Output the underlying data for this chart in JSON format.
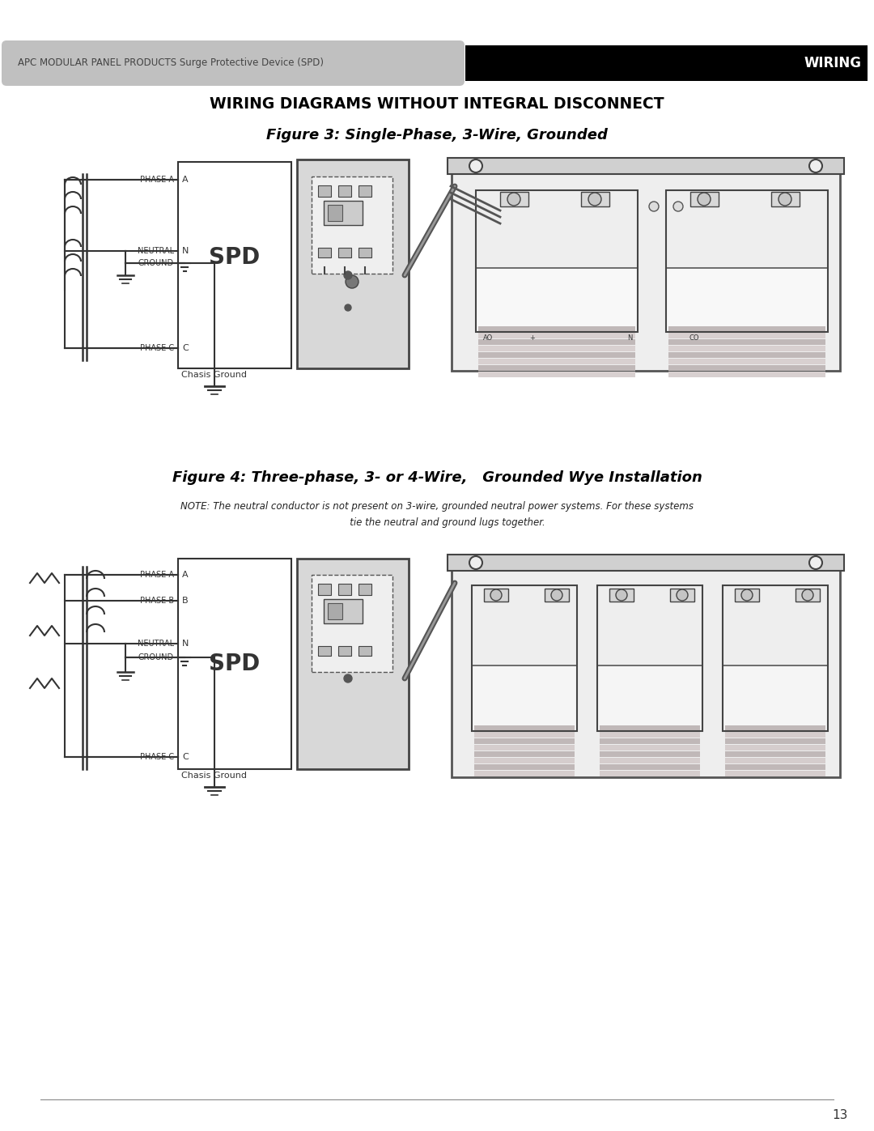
{
  "page_width": 10.8,
  "page_height": 13.97,
  "dpi": 100,
  "background_color": "#ffffff",
  "header_bg_left": "#c0c0c0",
  "header_bg_right": "#000000",
  "header_text_left": "APC MODULAR PANEL PRODUCTS Surge Protective Device (SPD)",
  "header_text_right": "WIRING",
  "header_text_color_left": "#444444",
  "header_text_color_right": "#ffffff",
  "main_title": "WIRING DIAGRAMS WITHOUT INTEGRAL DISCONNECT",
  "fig3_title": "Figure 3: Single-Phase, 3-Wire, Grounded",
  "fig4_title": "Figure 4: Three-phase, 3- or 4-Wire,   Grounded Wye Installation",
  "fig4_note_line1": "NOTE: The neutral conductor is not present on 3-wire, grounded neutral power systems. For these systems",
  "fig4_note_line2": "       tie the neutral and ground lugs together.",
  "page_number": "13",
  "line_color": "#333333"
}
